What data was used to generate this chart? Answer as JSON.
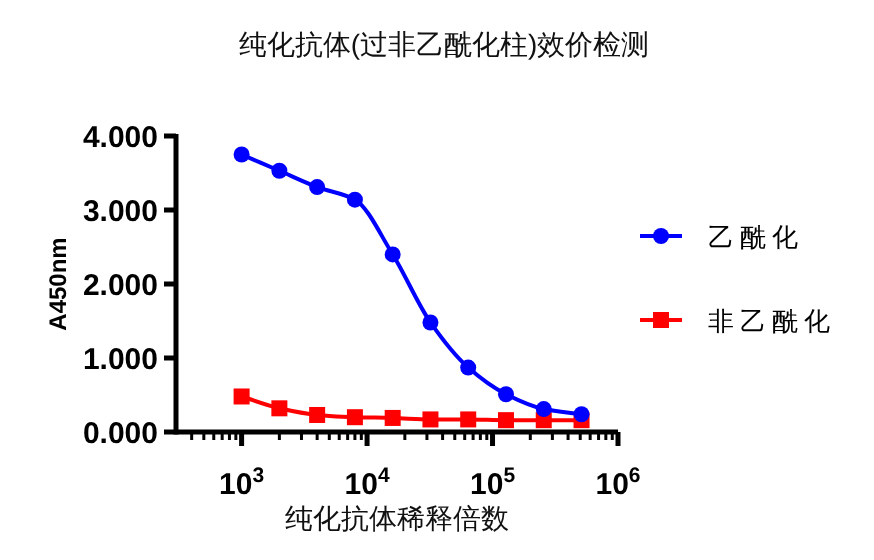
{
  "chart_data": {
    "type": "line",
    "title": "纯化抗体(过非乙酰化柱)效价检测",
    "xlabel": "纯化抗体稀释倍数",
    "ylabel": "A450nm",
    "log": "x",
    "xlim": [
      300,
      1000000
    ],
    "ylim": [
      0,
      4
    ],
    "xticks": [
      {
        "value": 1000,
        "label": "10$^{3}$"
      },
      {
        "value": 10000,
        "label": "10$^{4}$"
      },
      {
        "value": 100000,
        "label": "10$^{5}$"
      },
      {
        "value": 1000000,
        "label": "10$^{6}$"
      }
    ],
    "yticks": [
      {
        "value": 0,
        "label": "0.000"
      },
      {
        "value": 1,
        "label": "1.000"
      },
      {
        "value": 2,
        "label": "2.000"
      },
      {
        "value": 3,
        "label": "3.000"
      },
      {
        "value": 4,
        "label": "4.000"
      }
    ],
    "x": [
      1000,
      2000,
      4000,
      8000,
      16000,
      32000,
      64000,
      128000,
      256000,
      512000
    ],
    "legend": "right",
    "series": [
      {
        "name": "乙酰化",
        "color": "#0000ff",
        "marker": "circle",
        "values": [
          3.75,
          3.53,
          3.31,
          3.14,
          2.4,
          1.48,
          0.87,
          0.51,
          0.31,
          0.24
        ]
      },
      {
        "name": "非乙酰化",
        "color": "#ff0000",
        "marker": "square",
        "values": [
          0.48,
          0.32,
          0.23,
          0.2,
          0.19,
          0.17,
          0.17,
          0.16,
          0.16,
          0.16
        ]
      }
    ]
  }
}
